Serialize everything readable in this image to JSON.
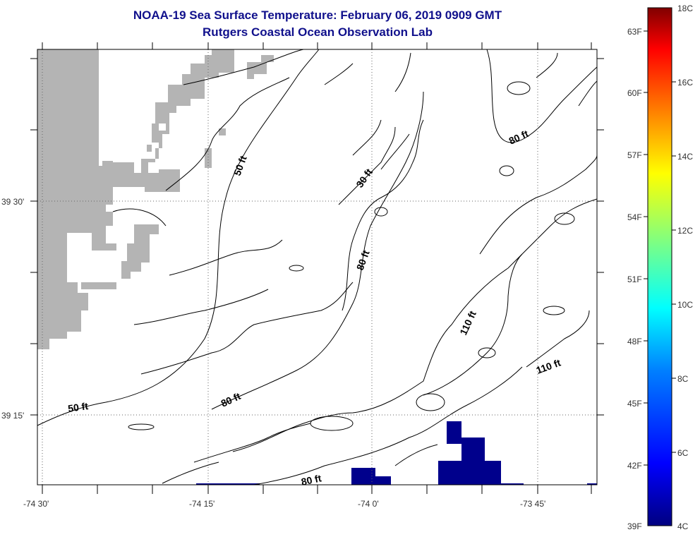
{
  "title": {
    "line1": "NOAA-19 Sea Surface Temperature:  February 06, 2019 0909 GMT",
    "line2": "Rutgers Coastal Ocean Observation Lab"
  },
  "map": {
    "lat_labels": [
      "39 30'",
      "39 15'"
    ],
    "lon_labels": [
      "-74 30'",
      "-74 15'",
      "-74 0'",
      "-73 45'"
    ],
    "contour_labels": [
      "50 ft",
      "30 ft",
      "80 ft",
      "80 ft",
      "110 ft",
      "110 ft",
      "80 ft",
      "50 ft",
      "80 ft"
    ],
    "land_color": "#b4b4b4",
    "sst_color": "#00008c"
  },
  "colorbar": {
    "fahrenheit": [
      "63F",
      "60F",
      "57F",
      "54F",
      "51F",
      "48F",
      "45F",
      "42F",
      "39F"
    ],
    "celsius": [
      "18C",
      "16C",
      "14C",
      "12C",
      "10C",
      "8C",
      "6C",
      "4C"
    ],
    "colors": [
      "#800000",
      "#ff0000",
      "#ff8000",
      "#ffff00",
      "#80ff80",
      "#00ffff",
      "#0080ff",
      "#0000ff",
      "#000080"
    ]
  }
}
